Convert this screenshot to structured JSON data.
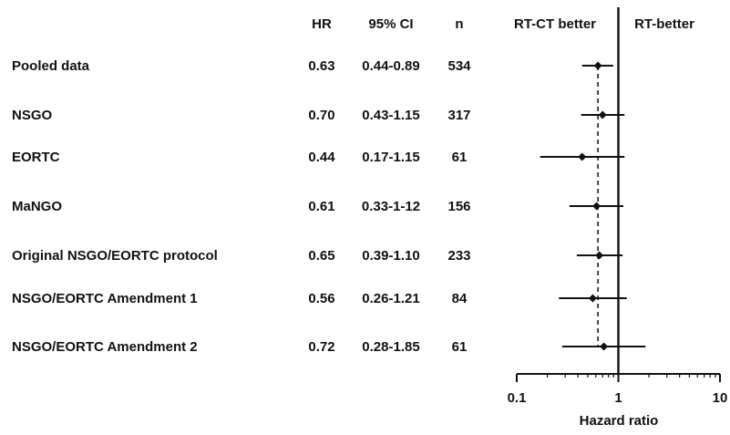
{
  "columns": {
    "hr": "HR",
    "ci": "95% CI",
    "n": "n"
  },
  "direction_labels": {
    "left": "RT-CT better",
    "right": "RT-better"
  },
  "chart_data": {
    "type": "forest",
    "xlabel": "Hazard ratio",
    "xscale": "log",
    "xlim": [
      0.1,
      10
    ],
    "xticks": [
      0.1,
      1,
      10
    ],
    "xtick_labels": [
      "0.1",
      "1",
      "10"
    ],
    "reference_line": 1,
    "pooled_estimate_line": 0.63,
    "rows": [
      {
        "label": "Pooled data",
        "hr": 0.63,
        "lo": 0.44,
        "hi": 0.89,
        "hr_text": "0.63",
        "ci_text": "0.44-0.89",
        "n_text": "534"
      },
      {
        "label": "NSGO",
        "hr": 0.7,
        "lo": 0.43,
        "hi": 1.15,
        "hr_text": "0.70",
        "ci_text": "0.43-1.15",
        "n_text": "317"
      },
      {
        "label": "EORTC",
        "hr": 0.44,
        "lo": 0.17,
        "hi": 1.15,
        "hr_text": "0.44",
        "ci_text": "0.17-1.15",
        "n_text": "61"
      },
      {
        "label": "MaNGO",
        "hr": 0.61,
        "lo": 0.33,
        "hi": 1.12,
        "hr_text": "0.61",
        "ci_text": "0.33-1-12",
        "n_text": "156"
      },
      {
        "label": "Original NSGO/EORTC protocol",
        "hr": 0.65,
        "lo": 0.39,
        "hi": 1.1,
        "hr_text": "0.65",
        "ci_text": "0.39-1.10",
        "n_text": "233"
      },
      {
        "label": "NSGO/EORTC Amendment 1",
        "hr": 0.56,
        "lo": 0.26,
        "hi": 1.21,
        "hr_text": "0.56",
        "ci_text": "0.26-1.21",
        "n_text": "84"
      },
      {
        "label": "NSGO/EORTC Amendment 2",
        "hr": 0.72,
        "lo": 0.28,
        "hi": 1.85,
        "hr_text": "0.72",
        "ci_text": "0.28-1.85",
        "n_text": "61"
      }
    ]
  }
}
